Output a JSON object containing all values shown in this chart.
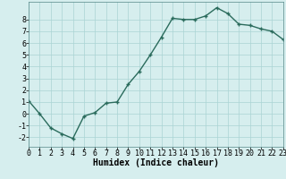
{
  "x": [
    0,
    1,
    2,
    3,
    4,
    5,
    6,
    7,
    8,
    9,
    10,
    11,
    12,
    13,
    14,
    15,
    16,
    17,
    18,
    19,
    20,
    21,
    22,
    23
  ],
  "y": [
    1.1,
    0.0,
    -1.2,
    -1.7,
    -2.1,
    -0.2,
    0.1,
    0.9,
    1.0,
    2.5,
    3.6,
    5.0,
    6.5,
    8.1,
    8.0,
    8.0,
    8.3,
    9.0,
    8.5,
    7.6,
    7.5,
    7.2,
    7.0,
    6.3
  ],
  "xlabel": "Humidex (Indice chaleur)",
  "ylim": [
    -2.8,
    9.5
  ],
  "xlim": [
    0,
    23
  ],
  "yticks": [
    -2,
    -1,
    0,
    1,
    2,
    3,
    4,
    5,
    6,
    7,
    8
  ],
  "xticks": [
    0,
    1,
    2,
    3,
    4,
    5,
    6,
    7,
    8,
    9,
    10,
    11,
    12,
    13,
    14,
    15,
    16,
    17,
    18,
    19,
    20,
    21,
    22,
    23
  ],
  "line_color": "#2a6b5c",
  "marker": "+",
  "marker_size": 3.5,
  "linewidth": 1.0,
  "background_color": "#d6eeee",
  "grid_color": "#aad4d4",
  "label_fontsize": 7,
  "tick_fontsize": 6,
  "tick_fontfamily": "monospace"
}
